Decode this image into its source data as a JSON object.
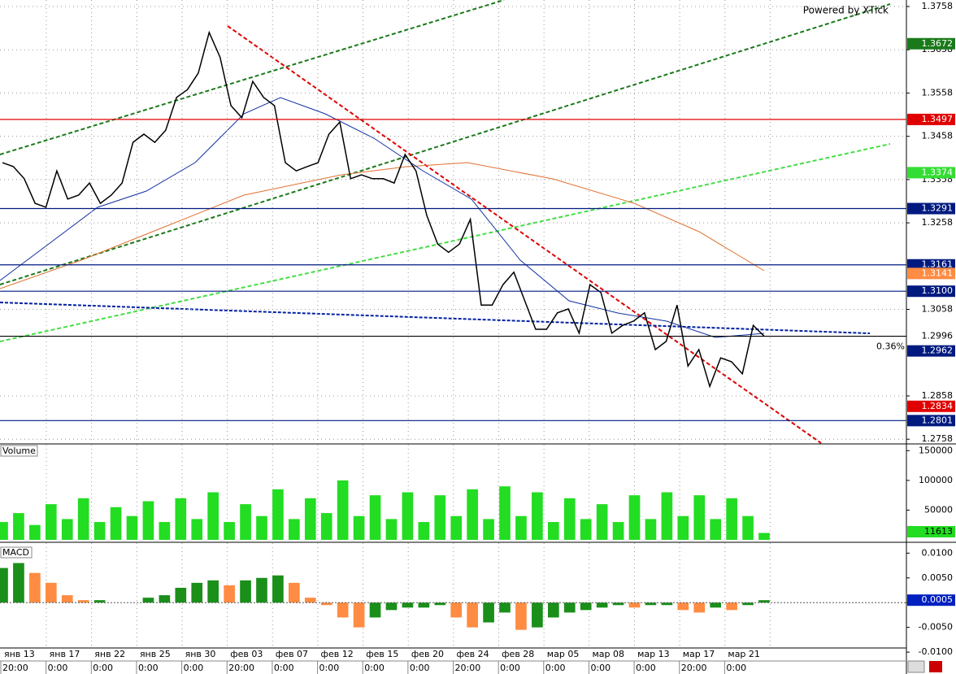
{
  "chart_data": [
    {
      "type": "line",
      "color": "#000000",
      "annotations": [
        "Powered by XTick",
        "0.36%"
      ],
      "x_labels": [
        "янв 13",
        "янв 17",
        "янв 22",
        "янв 25",
        "янв 30",
        "фев 03",
        "фев 07",
        "фев 12",
        "фев 15",
        "фев 20",
        "фев 24",
        "фев 28",
        "мар 05",
        "мар 08",
        "мар 13",
        "мар 17",
        "мар 21"
      ],
      "time_labels": [
        "20:00",
        "0:00",
        "0:00",
        "0:00",
        "0:00",
        "20:00",
        "0:00",
        "0:00",
        "0:00",
        "0:00",
        "20:00",
        "0:00",
        "0:00",
        "0:00",
        "0:00",
        "20:00",
        "0:00"
      ],
      "values": [
        1.3397,
        1.3388,
        1.336,
        1.3303,
        1.3294,
        1.3378,
        1.3313,
        1.3322,
        1.335,
        1.3303,
        1.3322,
        1.335,
        1.3444,
        1.3463,
        1.3444,
        1.3472,
        1.3548,
        1.3566,
        1.3604,
        1.3698,
        1.3641,
        1.3529,
        1.3501,
        1.3585,
        1.3548,
        1.3529,
        1.3397,
        1.3378,
        1.3388,
        1.3397,
        1.3463,
        1.3491,
        1.336,
        1.3369,
        1.336,
        1.336,
        1.335,
        1.3416,
        1.3378,
        1.3275,
        1.3209,
        1.319,
        1.3209,
        1.3266,
        1.3068,
        1.3068,
        1.3115,
        1.3144,
        1.3078,
        1.3012,
        1.3012,
        1.305,
        1.3059,
        1.3003,
        1.3115,
        1.3097,
        1.3003,
        1.3021,
        1.3031,
        1.305,
        1.2965,
        1.2984,
        1.3068,
        1.2927,
        1.2965,
        1.288,
        1.2946,
        1.2937,
        1.2909,
        1.3021,
        1.2996
      ],
      "ylim": [
        1.2749,
        1.3773
      ],
      "yticks": [
        1.3758,
        1.3658,
        1.3558,
        1.3458,
        1.3358,
        1.3258,
        1.3058,
        1.2858,
        1.2758
      ],
      "grid": true,
      "levels": [
        {
          "value": 1.3672,
          "label": "1.3672",
          "color": "#1a7a1a",
          "text_color": "#ffffff",
          "line": false
        },
        {
          "value": 1.3497,
          "label": "1.3497",
          "color": "#e00000",
          "text_color": "#ffffff",
          "line": true
        },
        {
          "value": 1.3374,
          "label": "1.3374",
          "color": "#33dd33",
          "text_color": "#ffffff",
          "line": false
        },
        {
          "value": 1.3291,
          "label": "1.3291",
          "color": "#001a80",
          "text_color": "#ffffff",
          "line": true
        },
        {
          "value": 1.3161,
          "label": "1.3161",
          "color": "#001a80",
          "text_color": "#ffffff",
          "line": true
        },
        {
          "value": 1.3141,
          "label": "1.3141",
          "color": "#ff8c42",
          "text_color": "#ffffff",
          "line": false
        },
        {
          "value": 1.31,
          "label": "1.3100",
          "color": "#001a80",
          "text_color": "#ffffff",
          "line": true
        },
        {
          "value": 1.2996,
          "label": "1.2996",
          "color": "#ffffff",
          "text_color": "#000000",
          "line": true
        },
        {
          "value": 1.2962,
          "label": "1.2962",
          "color": "#001a80",
          "text_color": "#ffffff",
          "line": false
        },
        {
          "value": 1.2834,
          "label": "1.2834",
          "color": "#e00000",
          "text_color": "#ffffff",
          "line": false
        },
        {
          "value": 1.2801,
          "label": "1.2801",
          "color": "#001a80",
          "text_color": "#ffffff",
          "line": true
        }
      ]
    },
    {
      "type": "bar",
      "title": "Volume",
      "color": "#22dd22",
      "values": [
        30000,
        45000,
        25000,
        60000,
        35000,
        70000,
        30000,
        55000,
        40000,
        65000,
        30000,
        70000,
        35000,
        80000,
        30000,
        60000,
        40000,
        85000,
        35000,
        70000,
        45000,
        100000,
        40000,
        75000,
        35000,
        80000,
        30000,
        75000,
        40000,
        85000,
        35000,
        90000,
        40000,
        80000,
        30000,
        70000,
        35000,
        60000,
        30000,
        75000,
        35000,
        80000,
        40000,
        75000,
        35000,
        70000,
        40000,
        11613
      ],
      "ylim": [
        0,
        160000
      ],
      "yticks": [
        150000,
        100000,
        50000
      ],
      "current_label": "11613"
    },
    {
      "type": "histogram",
      "title": "MACD",
      "colors": [
        "#1a8f1a",
        "#ff8c42"
      ],
      "values": [
        0.007,
        0.008,
        0.006,
        0.004,
        0.0015,
        0.0005,
        0.0005,
        0,
        0,
        0.001,
        0.0015,
        0.003,
        0.004,
        0.0045,
        0.0035,
        0.0045,
        0.005,
        0.0055,
        0.004,
        0.001,
        -0.0005,
        -0.003,
        -0.005,
        -0.003,
        -0.0015,
        -0.001,
        -0.001,
        -0.0005,
        -0.003,
        -0.005,
        -0.004,
        -0.002,
        -0.0055,
        -0.005,
        -0.003,
        -0.002,
        -0.0015,
        -0.001,
        -0.0005,
        -0.001,
        -0.0005,
        -0.0005,
        -0.0015,
        -0.002,
        -0.001,
        -0.0015,
        -0.0005,
        0.0005
      ],
      "ylim": [
        -0.0113,
        0.0117
      ],
      "yticks": [
        {
          "value": 0.01,
          "label": "0.0100"
        },
        {
          "value": 0.005,
          "label": "0.0050"
        },
        {
          "value": 0,
          "label": "0.0000"
        },
        {
          "value": -0.005,
          "label": "-0.0050"
        },
        {
          "value": -0.01,
          "label": "-0.0100"
        }
      ],
      "current_label": "0.0005"
    }
  ]
}
